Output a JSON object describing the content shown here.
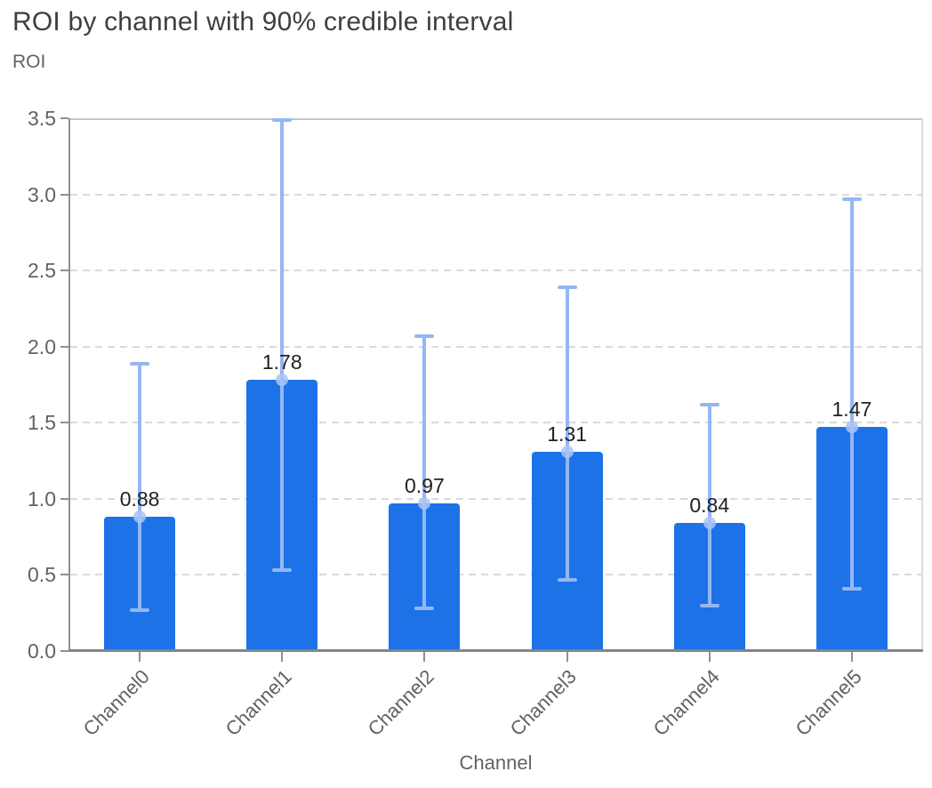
{
  "chart_data": {
    "type": "bar",
    "title": "ROI by channel with 90% credible interval",
    "ylabel": "ROI",
    "xlabel": "Channel",
    "categories": [
      "Channel0",
      "Channel1",
      "Channel2",
      "Channel3",
      "Channel4",
      "Channel5"
    ],
    "values": [
      0.88,
      1.78,
      0.97,
      1.31,
      0.84,
      1.47
    ],
    "value_labels": [
      "0.88",
      "1.78",
      "0.97",
      "1.31",
      "0.84",
      "1.47"
    ],
    "error_low": [
      0.27,
      0.53,
      0.28,
      0.47,
      0.3,
      0.41
    ],
    "error_high": [
      1.89,
      3.49,
      2.07,
      2.39,
      1.62,
      2.97
    ],
    "ylim": [
      0,
      3.5
    ],
    "yticks": [
      "0.0",
      "0.5",
      "1.0",
      "1.5",
      "2.0",
      "2.5",
      "3.0",
      "3.5"
    ],
    "grid": "dashed-horizontal",
    "legend": "none",
    "colors": {
      "bar": "#1d72e8",
      "error_bar": "#94b7f4",
      "mean_dot": "#a9c5f6",
      "grid_line": "#d8dadc",
      "axis_line": "#80868b",
      "tick_text": "#5f6368",
      "title_text": "#3c4043",
      "value_text": "#202124",
      "background": "#ffffff"
    }
  }
}
